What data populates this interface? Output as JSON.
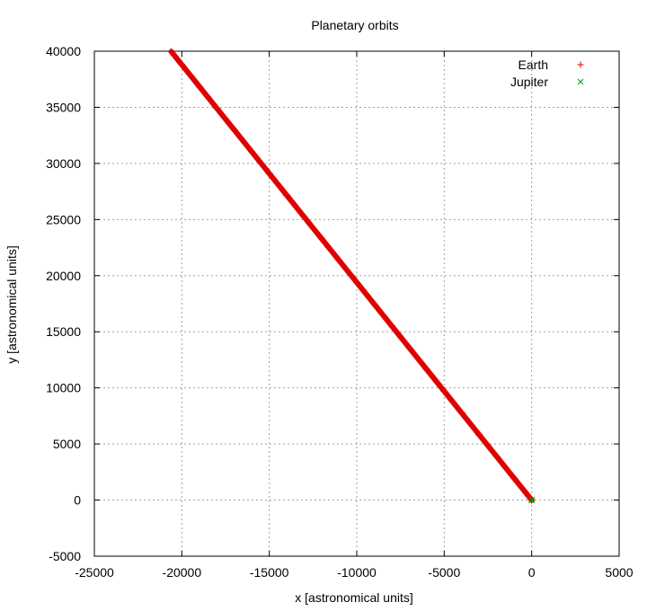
{
  "chart_data": {
    "type": "scatter",
    "title": "Planetary orbits",
    "xlabel": "x [astronomical units]",
    "ylabel": "y [astronomical units]",
    "xlim": [
      -25000,
      5000
    ],
    "ylim": [
      -5000,
      40000
    ],
    "xticks": [
      -25000,
      -20000,
      -15000,
      -10000,
      -5000,
      0,
      5000
    ],
    "yticks": [
      -5000,
      0,
      5000,
      10000,
      15000,
      20000,
      25000,
      30000,
      35000,
      40000
    ],
    "grid": true,
    "legend_position": "top-right",
    "series": [
      {
        "name": "Earth",
        "marker": "plus",
        "color": "#e00000",
        "x": [
          0,
          -1000,
          -2000,
          -3000,
          -4000,
          -5000,
          -6000,
          -7000,
          -8000,
          -9000,
          -10000,
          -11000,
          -12000,
          -13000,
          -14000,
          -15000,
          -16000,
          -17000,
          -18000,
          -19000,
          -20000,
          -20600
        ],
        "y": [
          0,
          1940,
          3880,
          5820,
          7760,
          9700,
          11640,
          13580,
          15520,
          17460,
          19400,
          21340,
          23280,
          25220,
          27160,
          29100,
          31040,
          32980,
          34920,
          36860,
          38800,
          39960
        ]
      },
      {
        "name": "Jupiter",
        "marker": "cross",
        "color": "#00a000",
        "x": [
          0,
          10,
          -10,
          5,
          -5
        ],
        "y": [
          0,
          20,
          10,
          -10,
          5
        ]
      }
    ]
  }
}
